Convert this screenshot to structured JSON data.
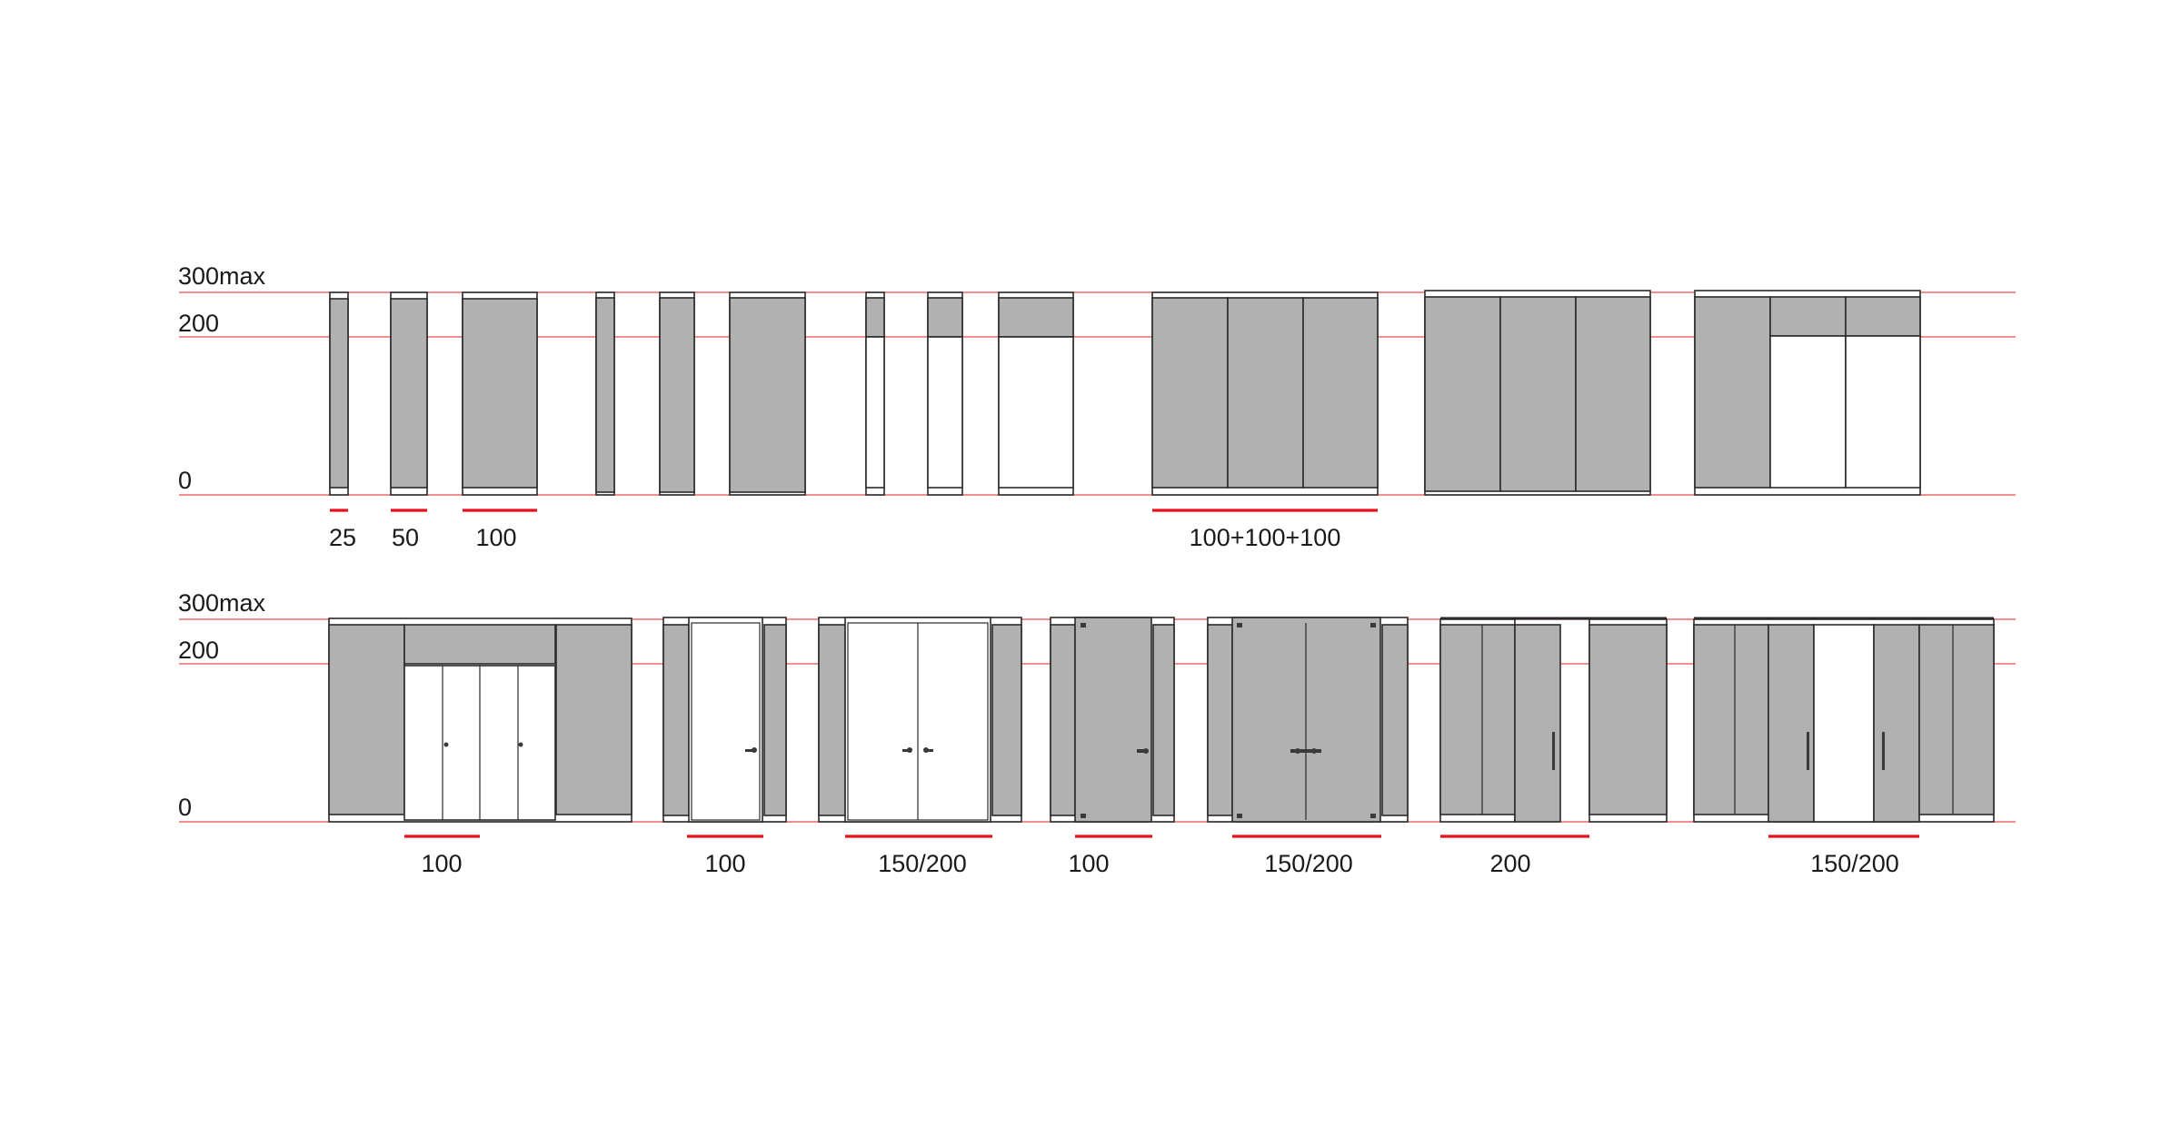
{
  "rows": [
    {
      "level_labels": {
        "max": "300max",
        "mid": "200",
        "zero": "0"
      },
      "dimension_labels": [
        "25",
        "50",
        "100",
        "100+100+100"
      ]
    },
    {
      "level_labels": {
        "max": "300max",
        "mid": "200",
        "zero": "0"
      },
      "dimension_labels": [
        "100",
        "100",
        "150/200",
        "100",
        "150/200",
        "200",
        "150/200"
      ]
    }
  ],
  "colors": {
    "guide_line": "#f26a6a",
    "dimension_bar": "#e8121c",
    "opaque_panel": "#b1b1b1",
    "glass": "#ffffff",
    "outline": "#2a2a2a"
  }
}
